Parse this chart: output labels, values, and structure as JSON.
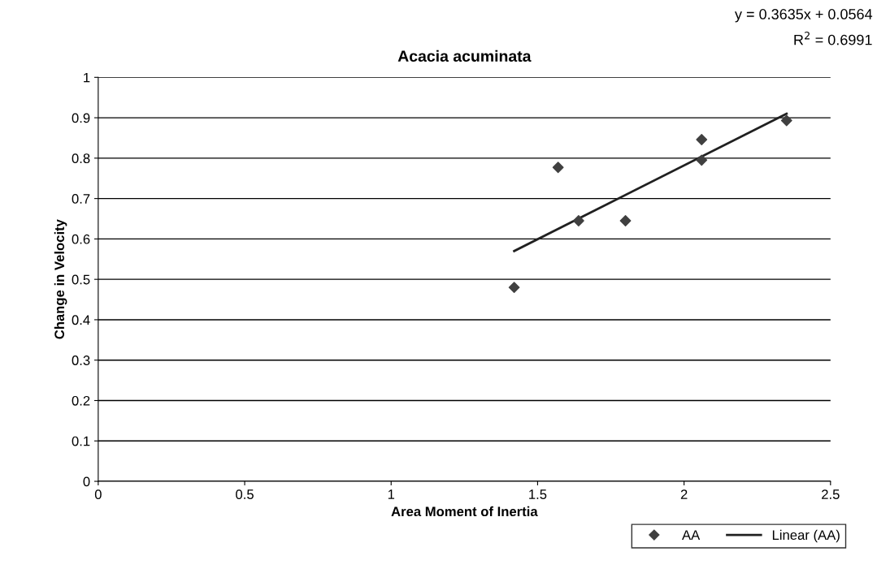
{
  "chart_data": {
    "type": "scatter",
    "title": "Acacia acuminata",
    "xlabel": "Area Moment of Inertia",
    "ylabel": "Change in Velocity",
    "annotations": [
      "y = 0.3635x + 0.0564",
      "R$^{2}$ = 0.6991"
    ],
    "series": [
      {
        "name": "AA",
        "color": "#404040",
        "marker": "diamond",
        "x": [
          1.42,
          1.57,
          1.64,
          1.8,
          2.06,
          2.06,
          2.35
        ],
        "values": [
          0.48,
          0.777,
          0.645,
          0.645,
          0.846,
          0.795,
          0.893
        ]
      },
      {
        "name": "Linear (AA)",
        "type": "line",
        "color": "#202020",
        "marker": "none",
        "line_style": "solid",
        "x": [
          1.42,
          2.35
        ],
        "values": [
          0.57,
          0.91
        ]
      }
    ],
    "xlim": [
      0,
      2.5
    ],
    "xticks": [
      0,
      0.5,
      1,
      1.5,
      2,
      2.5
    ],
    "ylim": [
      0,
      1
    ],
    "yticks": [
      0,
      0.1,
      0.2,
      0.3,
      0.4,
      0.5,
      0.6,
      0.7,
      0.8,
      0.9,
      1
    ],
    "grid": "y",
    "legend": "bottom right"
  }
}
